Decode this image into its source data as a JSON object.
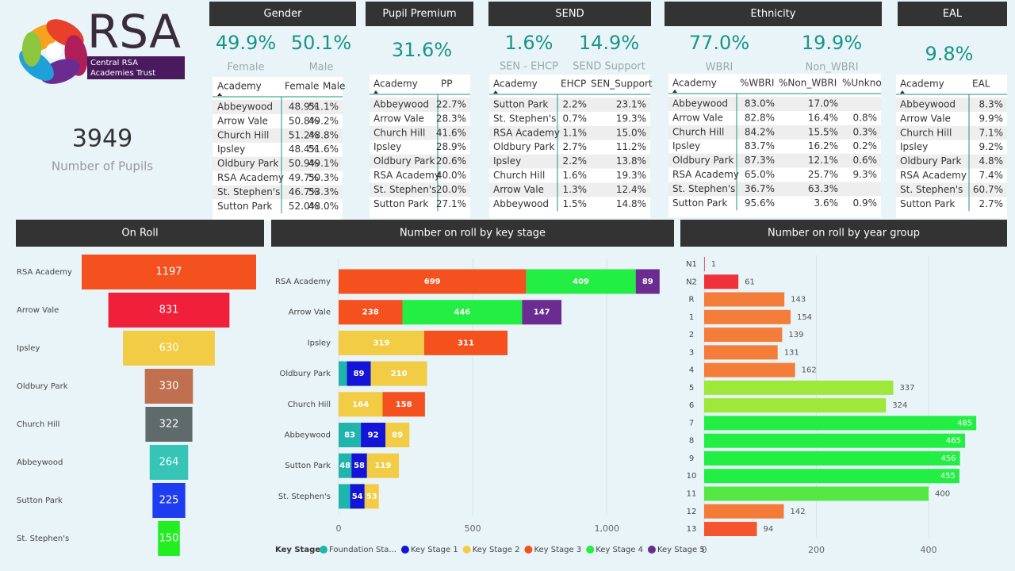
{
  "logo": {
    "name": "RSA",
    "line1": "Central RSA",
    "line2": "Academies Trust"
  },
  "kpi": {
    "value": "3949",
    "label": "Number of Pupils"
  },
  "panels": [
    {
      "title": "Gender",
      "stats": [
        {
          "value": "49.9%",
          "label": "Female"
        },
        {
          "value": "50.1%",
          "label": "Male"
        }
      ],
      "table": {
        "columns": [
          "Academy",
          "Female",
          "Male"
        ],
        "rows": [
          [
            "Abbeywood",
            "48.9%",
            "51.1%"
          ],
          [
            "Arrow Vale",
            "50.8%",
            "49.2%"
          ],
          [
            "Church Hill",
            "51.2%",
            "48.8%"
          ],
          [
            "Ipsley",
            "48.4%",
            "51.6%"
          ],
          [
            "Oldbury Park",
            "50.9%",
            "49.1%"
          ],
          [
            "RSA Academy",
            "49.7%",
            "50.3%"
          ],
          [
            "St. Stephen's",
            "46.7%",
            "53.3%"
          ],
          [
            "Sutton Park",
            "52.0%",
            "48.0%"
          ]
        ]
      }
    },
    {
      "title": "Pupil Premium",
      "stats": [
        {
          "value": "31.6%"
        }
      ],
      "table": {
        "columns": [
          "Academy",
          "PP"
        ],
        "rows": [
          [
            "Abbeywood",
            "22.7%"
          ],
          [
            "Arrow Vale",
            "28.3%"
          ],
          [
            "Church Hill",
            "41.6%"
          ],
          [
            "Ipsley",
            "28.9%"
          ],
          [
            "Oldbury Park",
            "20.6%"
          ],
          [
            "RSA Academy",
            "40.0%"
          ],
          [
            "St. Stephen's",
            "20.0%"
          ],
          [
            "Sutton Park",
            "27.1%"
          ]
        ]
      }
    },
    {
      "title": "SEND",
      "stats": [
        {
          "value": "1.6%",
          "label": "SEN - EHCP"
        },
        {
          "value": "14.9%",
          "label": "SEND Support"
        }
      ],
      "table": {
        "columns": [
          "Academy",
          "EHCP",
          "SEN_Support"
        ],
        "rows": [
          [
            "Sutton Park",
            "2.2%",
            "23.1%"
          ],
          [
            "St. Stephen's",
            "0.7%",
            "19.3%"
          ],
          [
            "RSA Academy",
            "1.1%",
            "15.0%"
          ],
          [
            "Oldbury Park",
            "2.7%",
            "11.2%"
          ],
          [
            "Ipsley",
            "2.2%",
            "13.8%"
          ],
          [
            "Church Hill",
            "1.6%",
            "19.3%"
          ],
          [
            "Arrow Vale",
            "1.3%",
            "12.4%"
          ],
          [
            "Abbeywood",
            "1.5%",
            "14.8%"
          ]
        ]
      }
    },
    {
      "title": "Ethnicity",
      "stats": [
        {
          "value": "77.0%",
          "label": "WBRI"
        },
        {
          "value": "19.9%",
          "label": "Non_WBRI"
        }
      ],
      "table": {
        "columns": [
          "Academy",
          "%WBRI",
          "%Non_WBRI",
          "%Unkno"
        ],
        "rows": [
          [
            "Abbeywood",
            "83.0%",
            "17.0%",
            null
          ],
          [
            "Arrow Vale",
            "82.8%",
            "16.4%",
            "0.8%"
          ],
          [
            "Church Hill",
            "84.2%",
            "15.5%",
            "0.3%"
          ],
          [
            "Ipsley",
            "83.7%",
            "16.2%",
            "0.2%"
          ],
          [
            "Oldbury Park",
            "87.3%",
            "12.1%",
            "0.6%"
          ],
          [
            "RSA Academy",
            "65.0%",
            "25.7%",
            "9.3%"
          ],
          [
            "St. Stephen's",
            "36.7%",
            "63.3%",
            null
          ],
          [
            "Sutton Park",
            "95.6%",
            "3.6%",
            "0.9%"
          ]
        ]
      }
    },
    {
      "title": "EAL",
      "stats": [
        {
          "value": "9.8%"
        }
      ],
      "table": {
        "columns": [
          "Academy",
          "EAL"
        ],
        "rows": [
          [
            "Abbeywood",
            "8.3%"
          ],
          [
            "Arrow Vale",
            "9.9%"
          ],
          [
            "Church Hill",
            "7.1%"
          ],
          [
            "Ipsley",
            "9.2%"
          ],
          [
            "Oldbury Park",
            "4.8%"
          ],
          [
            "RSA Academy",
            "7.4%"
          ],
          [
            "St. Stephen's",
            "60.7%"
          ],
          [
            "Sutton Park",
            "2.7%"
          ]
        ]
      }
    }
  ],
  "chart_data": [
    {
      "type": "funnel",
      "title": "On Roll",
      "categories": [
        "RSA Academy",
        "Arrow Vale",
        "Ipsley",
        "Oldbury Park",
        "Church Hill",
        "Abbeywood",
        "Sutton Park",
        "St. Stephen's"
      ],
      "values": [
        1197,
        831,
        630,
        330,
        322,
        264,
        225,
        150
      ],
      "colors": [
        "#f4511e",
        "#f0203a",
        "#f2cc44",
        "#c0704f",
        "#5f6a6b",
        "#35c4b5",
        "#1e3cf0",
        "#22ee22"
      ]
    },
    {
      "type": "stacked_bar",
      "title": "Number on roll by key stage",
      "legend_title": "Key Stage",
      "categories": [
        "RSA Academy",
        "Arrow Vale",
        "Ipsley",
        "Oldbury Park",
        "Church Hill",
        "Abbeywood",
        "Sutton Park",
        "St. Stephen's"
      ],
      "series": [
        {
          "name": "Foundation Sta...",
          "color": "#1fb5ad",
          "values": [
            null,
            null,
            null,
            31,
            null,
            83,
            48,
            43
          ]
        },
        {
          "name": "Key Stage 1",
          "color": "#1414d8",
          "values": [
            null,
            null,
            null,
            89,
            null,
            92,
            58,
            54
          ]
        },
        {
          "name": "Key Stage 2",
          "color": "#f2cc44",
          "values": [
            null,
            null,
            319,
            210,
            164,
            89,
            119,
            53
          ]
        },
        {
          "name": "Key Stage 3",
          "color": "#f4511e",
          "values": [
            699,
            238,
            311,
            null,
            158,
            null,
            null,
            null
          ]
        },
        {
          "name": "Key Stage 4",
          "color": "#22ee44",
          "values": [
            409,
            446,
            null,
            null,
            null,
            null,
            null,
            null
          ]
        },
        {
          "name": "Key Stage 5",
          "color": "#6a2c91",
          "values": [
            89,
            147,
            null,
            null,
            null,
            null,
            null,
            null
          ]
        }
      ],
      "xlim": [
        0,
        1230
      ],
      "xticks": [
        0,
        500,
        {
          "value": 1000,
          "label": "1,000"
        }
      ],
      "grid": true
    },
    {
      "type": "bar",
      "title": "Number on roll by year group",
      "categories": [
        "N1",
        "N2",
        "R",
        "1",
        "2",
        "3",
        "4",
        "5",
        "6",
        "7",
        "8",
        "9",
        "10",
        "11",
        "12",
        "13"
      ],
      "values": [
        1,
        61,
        143,
        154,
        139,
        131,
        162,
        337,
        324,
        485,
        465,
        456,
        455,
        400,
        142,
        94
      ],
      "colors": [
        "#f0203a",
        "#f0303a",
        "#f47d3a",
        "#f47d3a",
        "#f47d3a",
        "#f47d3a",
        "#f47d3a",
        "#9de83a",
        "#9de83a",
        "#22ee44",
        "#22ee44",
        "#22ee44",
        "#22ee44",
        "#55e845",
        "#f47a3a",
        "#f4552e"
      ],
      "xlim": [
        0,
        530
      ],
      "xticks": [
        0,
        200,
        400
      ],
      "grid": true
    }
  ]
}
